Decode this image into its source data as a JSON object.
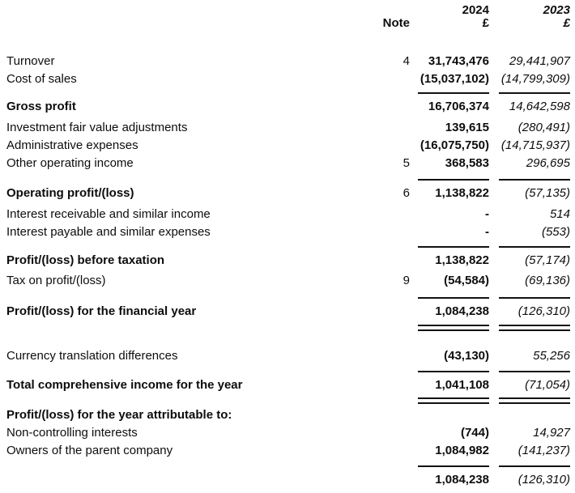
{
  "header": {
    "year_current": "2024",
    "year_prior": "2023",
    "note_label": "Note",
    "currency_current": "£",
    "currency_prior": "£"
  },
  "colors": {
    "text": "#0d0d0d",
    "background": "#ffffff",
    "rule": "#111111"
  },
  "rows": [
    {
      "label": "Turnover",
      "note": "4",
      "v2024": "31,743,476",
      "v2023": "29,441,907",
      "mt": 28
    },
    {
      "label": "Cost of sales",
      "note": "",
      "v2024": "(15,037,102)",
      "v2023": "(14,799,309)"
    },
    {
      "type": "rule",
      "mt": 6
    },
    {
      "label": "Gross profit",
      "bold": true,
      "note": "",
      "v2024": "16,706,374",
      "v2023": "14,642,598",
      "mt": 4
    },
    {
      "label": "Investment fair value adjustments",
      "note": "",
      "v2024": "139,615",
      "v2023": "(280,491)",
      "mt": 4
    },
    {
      "label": "Administrative expenses",
      "note": "",
      "v2024": "(16,075,750)",
      "v2023": "(14,715,937)"
    },
    {
      "label": "Other operating income",
      "note": "5",
      "v2024": "368,583",
      "v2023": "296,695"
    },
    {
      "type": "rule",
      "mt": 9
    },
    {
      "label": "Operating profit/(loss)",
      "bold": true,
      "note": "6",
      "v2024": "1,138,822",
      "v2023": "(57,135)",
      "mt": 4
    },
    {
      "label": "Interest receivable and similar income",
      "note": "",
      "v2024": "-",
      "v2023": "514",
      "mt": 4
    },
    {
      "label": "Interest payable and similar expenses",
      "note": "",
      "v2024": "-",
      "v2023": "(553)"
    },
    {
      "type": "rule",
      "mt": 7
    },
    {
      "label": "Profit/(loss) before taxation",
      "bold": true,
      "note": "",
      "v2024": "1,138,822",
      "v2023": "(57,174)",
      "mt": 4
    },
    {
      "label": "Tax on profit/(loss)",
      "note": "9",
      "v2024": "(54,584)",
      "v2023": "(69,136)",
      "mt": 3
    },
    {
      "type": "rule",
      "mt": 10
    },
    {
      "label": "Profit/(loss) for the financial year",
      "bold": true,
      "note": "",
      "v2024": "1,084,238",
      "v2023": "(126,310)",
      "mt": 4
    },
    {
      "type": "rule2",
      "mt": 6
    },
    {
      "label": "Currency translation differences",
      "note": "",
      "v2024": "(43,130)",
      "v2023": "55,256",
      "mt": 19
    },
    {
      "type": "rule",
      "mt": 8
    },
    {
      "label": "Total comprehensive income for the year",
      "bold": true,
      "note": "",
      "v2024": "1,041,108",
      "v2023": "(71,054)",
      "mt": 4
    },
    {
      "type": "rule2",
      "mt": 5
    },
    {
      "label": "Profit/(loss) for the year attributable to:",
      "bold": true,
      "note": "",
      "v2024": "",
      "v2023": "",
      "mt": 2
    },
    {
      "label": "Non-controlling interests",
      "note": "",
      "v2024": "(744)",
      "v2023": "14,927"
    },
    {
      "label": "Owners of the parent company",
      "note": "",
      "v2024": "1,084,982",
      "v2023": "(141,237)"
    },
    {
      "type": "rule",
      "mt": 8
    },
    {
      "label": "",
      "note": "",
      "v2024": "1,084,238",
      "v2023": "(126,310)",
      "mt": 4
    }
  ]
}
